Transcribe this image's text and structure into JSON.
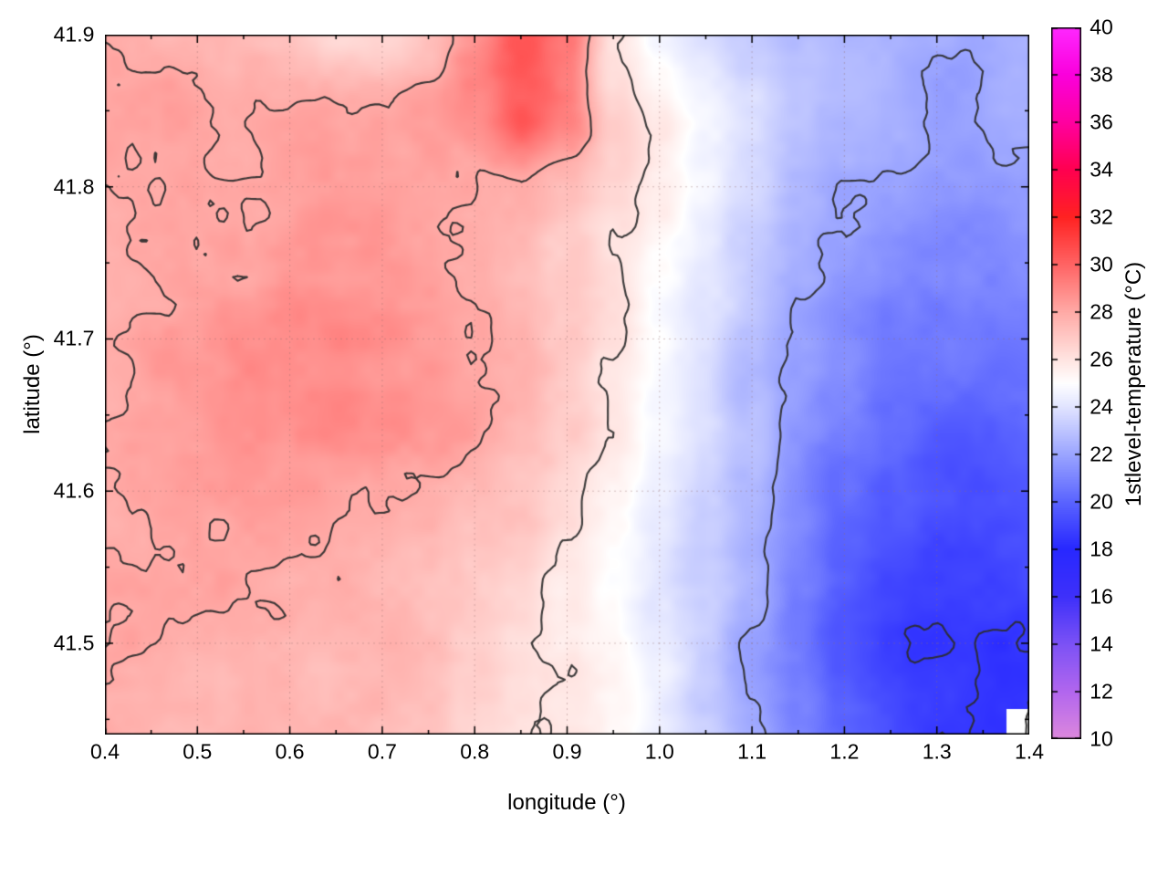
{
  "chart_data": {
    "type": "heatmap",
    "title": "",
    "xlabel": "longitude (°)",
    "ylabel": "latitude (°)",
    "colorbar_label": "1stlevel-temperature (°C)",
    "xlim": [
      0.4,
      1.4
    ],
    "ylim": [
      41.44,
      41.9
    ],
    "clim": [
      10,
      40
    ],
    "grid_on": true,
    "legend": "colorbar-right",
    "xticks": {
      "values": [
        0.4,
        0.5,
        0.6,
        0.7,
        0.8,
        0.9,
        1.0,
        1.1,
        1.2,
        1.3,
        1.4
      ],
      "labels": [
        "0.4",
        "0.5",
        "0.6",
        "0.7",
        "0.8",
        "0.9",
        "1.0",
        "1.1",
        "1.2",
        "1.3",
        "1.4"
      ]
    },
    "yticks": {
      "values": [
        41.5,
        41.6,
        41.7,
        41.8,
        41.9
      ],
      "labels": [
        "41.5",
        "41.6",
        "41.7",
        "41.8",
        "41.9"
      ]
    },
    "cbticks": {
      "values": [
        10,
        12,
        14,
        16,
        18,
        20,
        22,
        24,
        26,
        28,
        30,
        32,
        34,
        36,
        38,
        40
      ],
      "labels": [
        "10",
        "12",
        "14",
        "16",
        "18",
        "20",
        "22",
        "24",
        "26",
        "28",
        "30",
        "32",
        "34",
        "36",
        "38",
        "40"
      ]
    },
    "x_minor_step": 0.05,
    "y_minor_step": 0.05,
    "grid": {
      "lon": [
        0.4,
        0.45,
        0.5,
        0.55,
        0.6,
        0.65,
        0.7,
        0.75,
        0.8,
        0.85,
        0.9,
        0.95,
        1.0,
        1.05,
        1.1,
        1.15,
        1.2,
        1.25,
        1.3,
        1.35,
        1.4
      ],
      "lat": [
        41.45,
        41.5,
        41.55,
        41.6,
        41.65,
        41.7,
        41.75,
        41.8,
        41.85,
        41.9
      ],
      "temperature_c": [
        [
          27.8,
          27.8,
          27.7,
          27.7,
          27.6,
          27.5,
          27.4,
          27.2,
          26.8,
          26.4,
          25.9,
          25.2,
          24.4,
          23.4,
          22.2,
          21.0,
          19.8,
          19.0,
          18.6,
          18.5,
          18.6
        ],
        [
          27.9,
          27.9,
          27.8,
          27.8,
          27.7,
          27.6,
          27.5,
          27.3,
          26.9,
          26.5,
          25.9,
          25.1,
          24.2,
          23.2,
          22.0,
          20.8,
          19.5,
          18.7,
          18.3,
          18.3,
          18.5
        ],
        [
          27.9,
          27.9,
          27.9,
          27.9,
          27.8,
          27.8,
          27.7,
          27.5,
          27.1,
          26.7,
          26.0,
          25.2,
          24.3,
          23.3,
          22.2,
          21.0,
          19.9,
          19.2,
          18.8,
          18.8,
          19.0
        ],
        [
          27.9,
          28.0,
          28.1,
          28.3,
          28.3,
          28.2,
          28.1,
          27.9,
          27.5,
          27.0,
          26.3,
          25.5,
          24.5,
          23.5,
          22.4,
          21.3,
          20.3,
          19.7,
          19.4,
          19.4,
          19.6
        ],
        [
          27.9,
          28.1,
          28.3,
          28.6,
          28.8,
          28.9,
          28.8,
          28.5,
          28.1,
          27.5,
          26.7,
          25.8,
          24.7,
          23.7,
          22.7,
          21.7,
          20.9,
          20.3,
          20.0,
          20.0,
          20.2
        ],
        [
          28.0,
          28.2,
          28.4,
          28.8,
          29.0,
          29.0,
          28.9,
          28.6,
          28.2,
          27.6,
          26.9,
          25.9,
          24.9,
          23.9,
          22.9,
          22.0,
          21.3,
          20.8,
          20.5,
          20.5,
          20.7
        ],
        [
          27.9,
          28.1,
          28.2,
          28.4,
          28.6,
          28.6,
          28.5,
          28.4,
          28.1,
          27.6,
          26.9,
          26.1,
          25.1,
          24.2,
          23.3,
          22.5,
          21.8,
          21.4,
          21.1,
          21.1,
          21.3
        ],
        [
          27.9,
          27.9,
          28.0,
          28.1,
          28.2,
          28.3,
          28.3,
          28.3,
          28.2,
          28.0,
          27.4,
          26.5,
          25.5,
          24.5,
          23.6,
          22.8,
          22.2,
          21.8,
          21.6,
          21.6,
          21.8
        ],
        [
          28.0,
          28.0,
          28.0,
          28.0,
          28.0,
          28.0,
          28.1,
          28.4,
          29.0,
          30.2,
          29.3,
          26.8,
          25.6,
          24.6,
          23.7,
          23.0,
          22.5,
          22.1,
          21.9,
          22.0,
          22.2
        ],
        [
          27.9,
          27.8,
          27.7,
          27.5,
          26.9,
          26.3,
          26.6,
          27.4,
          28.9,
          30.6,
          29.4,
          26.0,
          24.6,
          23.8,
          23.3,
          22.9,
          22.5,
          22.2,
          22.1,
          22.2,
          22.4
        ]
      ]
    },
    "contour_levels": [
      18.5,
      22,
      26,
      28
    ],
    "contour_color": "#2d2d2d",
    "no_data_corner": {
      "lon_min": 1.375,
      "lat_max": 41.457
    },
    "palette_stops": [
      [
        10,
        "#dd88dd"
      ],
      [
        12,
        "#b266ee"
      ],
      [
        14,
        "#7c52f5"
      ],
      [
        16,
        "#3e30fa"
      ],
      [
        18,
        "#2828ff"
      ],
      [
        20,
        "#5a64ff"
      ],
      [
        22,
        "#9ba5ff"
      ],
      [
        24,
        "#e1e4ff"
      ],
      [
        25,
        "#ffffff"
      ],
      [
        26,
        "#ffe4e1"
      ],
      [
        28,
        "#ffaaa6"
      ],
      [
        30,
        "#ff6464"
      ],
      [
        32,
        "#ff2222"
      ],
      [
        34,
        "#ff0050"
      ],
      [
        36,
        "#ff00a0"
      ],
      [
        38,
        "#fa00dc"
      ],
      [
        40,
        "#ff28ff"
      ]
    ]
  }
}
